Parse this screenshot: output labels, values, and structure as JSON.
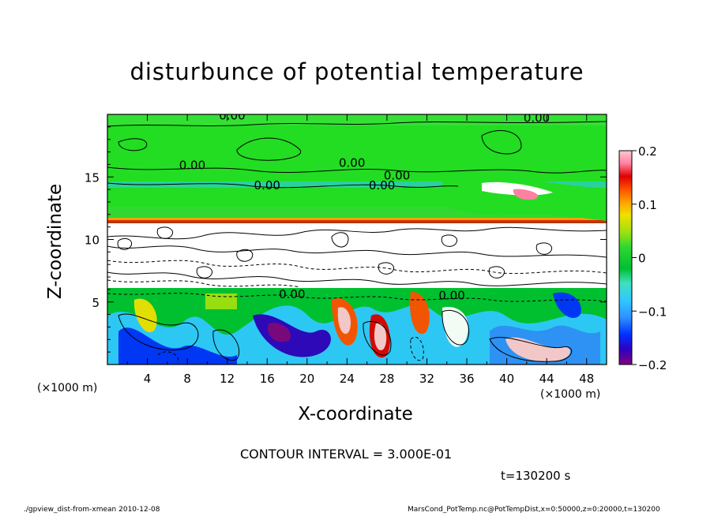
{
  "chart_data": {
    "type": "heatmap",
    "title": "disturbunce of potential temperature",
    "xlabel": "X-coordinate",
    "ylabel": "Z-coordinate",
    "x_unit_left": "(×1000 m)",
    "x_unit_right": "(×1000 m)",
    "xlim": [
      0,
      50
    ],
    "ylim": [
      0,
      20
    ],
    "x_ticks": [
      "4",
      "8",
      "12",
      "16",
      "20",
      "24",
      "28",
      "32",
      "36",
      "40",
      "44",
      "48"
    ],
    "x_tick_values": [
      4,
      8,
      12,
      16,
      20,
      24,
      28,
      32,
      36,
      40,
      44,
      48
    ],
    "y_ticks": [
      "5",
      "10",
      "15"
    ],
    "y_tick_values": [
      5,
      10,
      15
    ],
    "colorbar": {
      "range": [
        -0.2,
        0.2
      ],
      "tick_labels": [
        "0.2",
        "0.1",
        "0",
        "−0.1",
        "−0.2"
      ],
      "tick_values": [
        0.2,
        0.1,
        0,
        -0.1,
        -0.2
      ],
      "colors": [
        "#800080",
        "#3000c0",
        "#0030ff",
        "#3090ff",
        "#30c8ff",
        "#40e0c0",
        "#00c030",
        "#30d830",
        "#a0e010",
        "#f0e000",
        "#ffa000",
        "#ff5000",
        "#e00000",
        "#ff80a0",
        "#ffc8d0"
      ]
    },
    "contour_labels": [
      {
        "text": "0.00",
        "x": 12.5,
        "z": 19.6
      },
      {
        "text": "0.00",
        "x": 43,
        "z": 19.4
      },
      {
        "text": "0.00",
        "x": 8.5,
        "z": 15.6
      },
      {
        "text": "0.00",
        "x": 24.5,
        "z": 15.8
      },
      {
        "text": "0.00",
        "x": 29,
        "z": 14.8
      },
      {
        "text": "0.00",
        "x": 16,
        "z": 14.0
      },
      {
        "text": "0.00",
        "x": 27.5,
        "z": 14.0
      },
      {
        "text": "0.00",
        "x": 18.5,
        "z": 5.3
      },
      {
        "text": "0.00",
        "x": 34.5,
        "z": 5.2
      }
    ],
    "grid": false
  },
  "contour_note": "CONTOUR INTERVAL = 3.000E-01",
  "time_label": "t=130200 s",
  "footer_left": "./gpview_dist-from-xmean 2010-12-08",
  "footer_right": "MarsCond_PotTemp.nc@PotTempDist,x=0:50000,z=0:20000,t=130200"
}
